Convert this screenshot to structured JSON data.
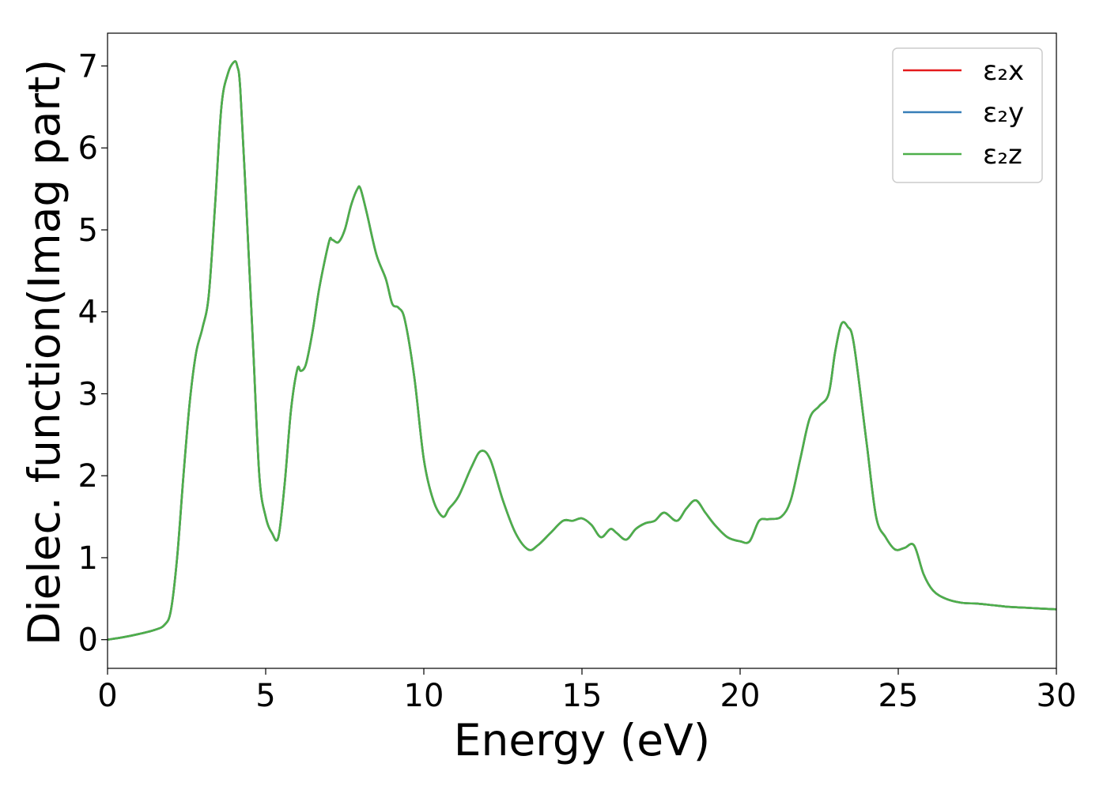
{
  "chart_data": {
    "type": "line",
    "title": "",
    "xlabel": "Energy (eV)",
    "ylabel": "Dielec. function(Imag part)",
    "xlim": [
      0,
      30
    ],
    "ylim": [
      -0.35,
      7.4
    ],
    "xticks": [
      0,
      5,
      10,
      15,
      20,
      25,
      30
    ],
    "yticks": [
      0,
      1,
      2,
      3,
      4,
      5,
      6,
      7
    ],
    "grid": false,
    "legend_position": "top-right",
    "x": [
      0,
      0.5,
      1.0,
      1.5,
      1.8,
      2.0,
      2.2,
      2.4,
      2.6,
      2.8,
      3.0,
      3.2,
      3.4,
      3.6,
      3.8,
      4.0,
      4.1,
      4.2,
      4.4,
      4.6,
      4.8,
      5.0,
      5.2,
      5.4,
      5.6,
      5.8,
      6.0,
      6.1,
      6.2,
      6.3,
      6.5,
      6.7,
      7.0,
      7.1,
      7.3,
      7.5,
      7.7,
      7.9,
      8.0,
      8.2,
      8.5,
      8.8,
      9.0,
      9.2,
      9.4,
      9.7,
      10.0,
      10.3,
      10.6,
      10.8,
      11.1,
      11.5,
      11.8,
      12.1,
      12.5,
      12.9,
      13.3,
      13.6,
      14.0,
      14.4,
      14.7,
      15.0,
      15.3,
      15.6,
      15.9,
      16.1,
      16.4,
      16.7,
      17.0,
      17.3,
      17.6,
      18.0,
      18.3,
      18.6,
      18.9,
      19.2,
      19.6,
      20.0,
      20.3,
      20.6,
      20.9,
      21.3,
      21.6,
      21.9,
      22.2,
      22.5,
      22.8,
      23.0,
      23.2,
      23.4,
      23.6,
      24.0,
      24.3,
      24.6,
      24.9,
      25.2,
      25.5,
      25.8,
      26.1,
      26.5,
      27.0,
      27.5,
      28.0,
      28.5,
      29.0,
      29.5,
      30.0
    ],
    "series": [
      {
        "name": "ε₂x",
        "color": "#e41a1c",
        "values": [
          0.0,
          0.03,
          0.07,
          0.12,
          0.18,
          0.35,
          1.0,
          2.0,
          2.9,
          3.5,
          3.8,
          4.2,
          5.3,
          6.5,
          6.9,
          7.05,
          7.0,
          6.7,
          5.2,
          3.6,
          2.0,
          1.5,
          1.3,
          1.25,
          1.9,
          2.8,
          3.3,
          3.28,
          3.3,
          3.4,
          3.8,
          4.3,
          4.85,
          4.88,
          4.85,
          5.0,
          5.3,
          5.5,
          5.5,
          5.2,
          4.7,
          4.4,
          4.1,
          4.05,
          3.9,
          3.2,
          2.2,
          1.7,
          1.5,
          1.6,
          1.75,
          2.1,
          2.3,
          2.2,
          1.7,
          1.3,
          1.1,
          1.15,
          1.3,
          1.45,
          1.45,
          1.48,
          1.4,
          1.25,
          1.35,
          1.3,
          1.22,
          1.35,
          1.42,
          1.45,
          1.55,
          1.45,
          1.6,
          1.7,
          1.55,
          1.4,
          1.25,
          1.2,
          1.2,
          1.45,
          1.47,
          1.5,
          1.7,
          2.2,
          2.7,
          2.85,
          3.0,
          3.5,
          3.85,
          3.82,
          3.6,
          2.4,
          1.5,
          1.25,
          1.1,
          1.12,
          1.15,
          0.8,
          0.6,
          0.5,
          0.45,
          0.44,
          0.42,
          0.4,
          0.39,
          0.38,
          0.37
        ]
      },
      {
        "name": "ε₂y",
        "color": "#377eb8",
        "values": [
          0.0,
          0.03,
          0.07,
          0.12,
          0.18,
          0.35,
          1.0,
          2.0,
          2.9,
          3.5,
          3.8,
          4.2,
          5.3,
          6.5,
          6.9,
          7.05,
          7.0,
          6.7,
          5.2,
          3.6,
          2.0,
          1.5,
          1.3,
          1.25,
          1.9,
          2.8,
          3.3,
          3.28,
          3.3,
          3.4,
          3.8,
          4.3,
          4.85,
          4.88,
          4.85,
          5.0,
          5.3,
          5.5,
          5.5,
          5.2,
          4.7,
          4.4,
          4.1,
          4.05,
          3.9,
          3.2,
          2.2,
          1.7,
          1.5,
          1.6,
          1.75,
          2.1,
          2.3,
          2.2,
          1.7,
          1.3,
          1.1,
          1.15,
          1.3,
          1.45,
          1.45,
          1.48,
          1.4,
          1.25,
          1.35,
          1.3,
          1.22,
          1.35,
          1.42,
          1.45,
          1.55,
          1.45,
          1.6,
          1.7,
          1.55,
          1.4,
          1.25,
          1.2,
          1.2,
          1.45,
          1.47,
          1.5,
          1.7,
          2.2,
          2.7,
          2.85,
          3.0,
          3.5,
          3.85,
          3.82,
          3.6,
          2.4,
          1.5,
          1.25,
          1.1,
          1.12,
          1.15,
          0.8,
          0.6,
          0.5,
          0.45,
          0.44,
          0.42,
          0.4,
          0.39,
          0.38,
          0.37
        ]
      },
      {
        "name": "ε₂z",
        "color": "#4daf4a",
        "values": [
          0.0,
          0.03,
          0.07,
          0.12,
          0.18,
          0.35,
          1.0,
          2.0,
          2.9,
          3.5,
          3.8,
          4.2,
          5.3,
          6.5,
          6.9,
          7.05,
          7.0,
          6.7,
          5.2,
          3.6,
          2.0,
          1.5,
          1.3,
          1.25,
          1.9,
          2.8,
          3.3,
          3.28,
          3.3,
          3.4,
          3.8,
          4.3,
          4.85,
          4.88,
          4.85,
          5.0,
          5.3,
          5.5,
          5.5,
          5.2,
          4.7,
          4.4,
          4.1,
          4.05,
          3.9,
          3.2,
          2.2,
          1.7,
          1.5,
          1.6,
          1.75,
          2.1,
          2.3,
          2.2,
          1.7,
          1.3,
          1.1,
          1.15,
          1.3,
          1.45,
          1.45,
          1.48,
          1.4,
          1.25,
          1.35,
          1.3,
          1.22,
          1.35,
          1.42,
          1.45,
          1.55,
          1.45,
          1.6,
          1.7,
          1.55,
          1.4,
          1.25,
          1.2,
          1.2,
          1.45,
          1.47,
          1.5,
          1.7,
          2.2,
          2.7,
          2.85,
          3.0,
          3.5,
          3.85,
          3.82,
          3.6,
          2.4,
          1.5,
          1.25,
          1.1,
          1.12,
          1.15,
          0.8,
          0.6,
          0.5,
          0.45,
          0.44,
          0.42,
          0.4,
          0.39,
          0.38,
          0.37
        ]
      }
    ]
  }
}
